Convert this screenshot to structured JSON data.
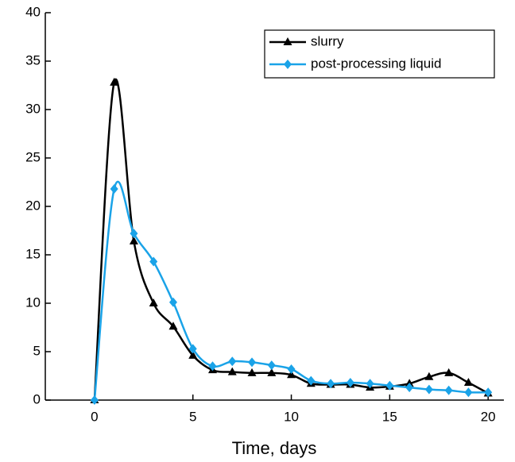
{
  "chart_data": {
    "type": "line",
    "xlabel": "Time, days",
    "x": [
      0,
      1,
      2,
      3,
      4,
      5,
      6,
      7,
      8,
      9,
      10,
      11,
      12,
      13,
      14,
      15,
      16,
      17,
      18,
      19,
      20
    ],
    "series": [
      {
        "name": "slurry",
        "color": "#000000",
        "marker": "triangle",
        "values": [
          0,
          32.8,
          16.4,
          10,
          7.6,
          4.6,
          3.1,
          2.9,
          2.8,
          2.8,
          2.6,
          1.7,
          1.6,
          1.6,
          1.3,
          1.4,
          1.7,
          2.4,
          2.8,
          1.8,
          0.7
        ]
      },
      {
        "name": "post-processing liquid",
        "color": "#1aa3e8",
        "marker": "diamond",
        "values": [
          0,
          21.8,
          17.2,
          14.3,
          10.1,
          5.3,
          3.5,
          4.0,
          3.9,
          3.6,
          3.2,
          2.0,
          1.7,
          1.8,
          1.7,
          1.5,
          1.3,
          1.1,
          1.0,
          0.8,
          0.8
        ]
      }
    ],
    "xlim": [
      -2.5,
      20.8
    ],
    "xticks": [
      0,
      5,
      10,
      15,
      20
    ],
    "ylim": [
      0,
      40
    ],
    "yticks": [
      0,
      5,
      10,
      15,
      20,
      25,
      30,
      35,
      40
    ],
    "smooth": true,
    "legend": "upper right"
  }
}
